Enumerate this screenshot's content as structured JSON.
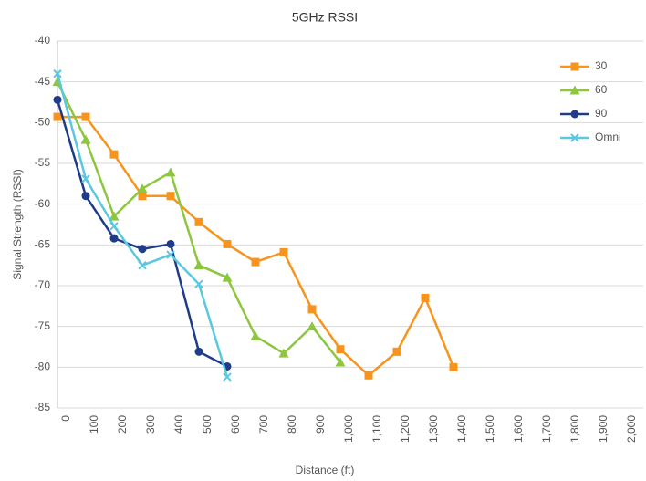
{
  "chart_data": {
    "type": "line",
    "title": "5GHz RSSI",
    "x_label": "Distance (ft)",
    "y_label": "Signal Strength (RSSI)",
    "categories": [
      "0",
      "100",
      "200",
      "300",
      "400",
      "500",
      "600",
      "700",
      "800",
      "900",
      "1,000",
      "1,100",
      "1,200",
      "1,300",
      "1,400",
      "1,500",
      "1,600",
      "1,700",
      "1,800",
      "1,900",
      "2,000"
    ],
    "series": [
      {
        "name": "30",
        "color": "#f7941d",
        "marker": "square",
        "values": [
          -49.3,
          -49.3,
          -53.9,
          -59.0,
          -59.0,
          -62.2,
          -64.9,
          -67.1,
          -65.9,
          -72.9,
          -77.8,
          -81.0,
          -78.1,
          -71.5,
          -80.0,
          null,
          null,
          null,
          null,
          null,
          null
        ]
      },
      {
        "name": "60",
        "color": "#8dc63f",
        "marker": "triangle",
        "values": [
          -45.0,
          -52.1,
          -61.5,
          -58.1,
          -56.1,
          -67.5,
          -69.0,
          -76.2,
          -78.3,
          -75.0,
          -79.4,
          null,
          null,
          null,
          null,
          null,
          null,
          null,
          null,
          null,
          null
        ]
      },
      {
        "name": "90",
        "color": "#1f3c88",
        "marker": "circle",
        "values": [
          -47.2,
          -59.0,
          -64.2,
          -65.5,
          -64.9,
          -78.1,
          -79.9,
          null,
          null,
          null,
          null,
          null,
          null,
          null,
          null,
          null,
          null,
          null,
          null,
          null,
          null
        ]
      },
      {
        "name": "Omni",
        "color": "#5bc8e0",
        "marker": "x",
        "values": [
          -44.0,
          -56.9,
          -62.7,
          -67.5,
          -66.2,
          -69.8,
          -81.2,
          null,
          null,
          null,
          null,
          null,
          null,
          null,
          null,
          null,
          null,
          null,
          null,
          null,
          null
        ]
      }
    ],
    "ylim": [
      -85,
      -40
    ],
    "yticks": [
      -85,
      -80,
      -75,
      -70,
      -65,
      -60,
      -55,
      -50,
      -45,
      -40
    ],
    "grid": true,
    "legend": "right"
  }
}
